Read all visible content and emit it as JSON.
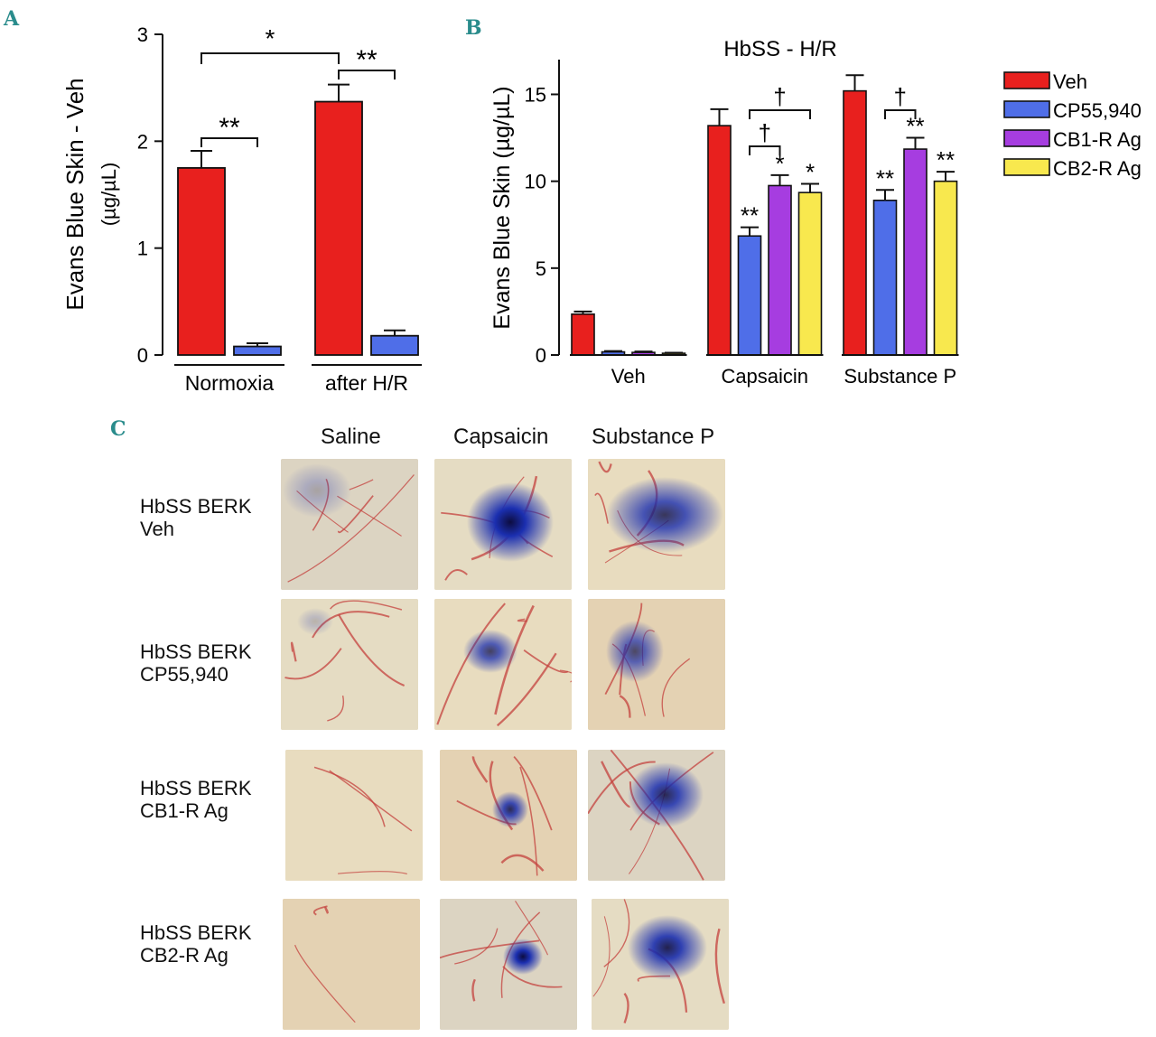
{
  "panels": {
    "a": "A",
    "b": "B",
    "c": "C"
  },
  "chart_data": [
    {
      "type": "bar",
      "panel": "A",
      "title": "",
      "ylabel_line1": "Evans Blue Skin - Veh",
      "ylabel_line2": "(µg/µL)",
      "xlabel": "",
      "ylim": [
        0,
        3
      ],
      "yticks": [
        0,
        1,
        2,
        3
      ],
      "categories": [
        "Normoxia",
        "after H/R"
      ],
      "series": [
        {
          "name": "Veh",
          "color": "#e8201e",
          "values": [
            1.75,
            2.37
          ],
          "errors": [
            0.16,
            0.16
          ]
        },
        {
          "name": "CP55,940",
          "color": "#4f6ee8",
          "values": [
            0.08,
            0.18
          ],
          "errors": [
            0.03,
            0.05
          ]
        }
      ],
      "annotations": [
        {
          "text": "**",
          "type": "bracket",
          "category": 0,
          "from_series": 0,
          "to_series": 1
        },
        {
          "text": "**",
          "type": "bracket",
          "category": 1,
          "from_series": 0,
          "to_series": 1
        },
        {
          "text": "*",
          "type": "bracket-across",
          "from_category": 0,
          "to_category": 1,
          "series": 0
        }
      ]
    },
    {
      "type": "bar",
      "panel": "B",
      "title": "HbSS - H/R",
      "ylabel": "Evans Blue Skin (µg/µL)",
      "xlabel": "",
      "ylim": [
        0,
        17
      ],
      "yticks": [
        0,
        5,
        10,
        15
      ],
      "categories": [
        "Veh",
        "Capsaicin",
        "Substance P"
      ],
      "legend_position": "right",
      "series": [
        {
          "name": "Veh",
          "color": "#e8201e",
          "values": [
            2.35,
            13.2,
            15.2
          ],
          "errors": [
            0.15,
            0.95,
            0.9
          ]
        },
        {
          "name": "CP55,940",
          "color": "#4f6ee8",
          "values": [
            0.18,
            6.85,
            8.9
          ],
          "errors": [
            0.05,
            0.5,
            0.6
          ]
        },
        {
          "name": "CB1-R Ag",
          "color": "#a63de0",
          "values": [
            0.15,
            9.75,
            11.85
          ],
          "errors": [
            0.05,
            0.6,
            0.65
          ]
        },
        {
          "name": "CB2-R Ag",
          "color": "#f8e84e",
          "values": [
            0.1,
            9.35,
            10.0
          ],
          "errors": [
            0.03,
            0.5,
            0.55
          ]
        }
      ],
      "significance": [
        {
          "category": 1,
          "series": 1,
          "text": "**"
        },
        {
          "category": 1,
          "series": 2,
          "text": "*"
        },
        {
          "category": 1,
          "series": 3,
          "text": "*"
        },
        {
          "category": 2,
          "series": 1,
          "text": "**"
        },
        {
          "category": 2,
          "series": 2,
          "text": "**"
        },
        {
          "category": 2,
          "series": 3,
          "text": "**"
        }
      ],
      "brackets": [
        {
          "category": 1,
          "from_series": 1,
          "to_series": 2,
          "text": "†"
        },
        {
          "category": 1,
          "from_series": 1,
          "to_series": 3,
          "text": "†"
        },
        {
          "category": 2,
          "from_series": 1,
          "to_series": 2,
          "text": "†"
        }
      ]
    }
  ],
  "panel_c": {
    "columns": [
      "Saline",
      "Capsaicin",
      "Substance P"
    ],
    "rows": [
      {
        "line1": "HbSS BERK",
        "line2": "Veh"
      },
      {
        "line1": "HbSS BERK",
        "line2": "CP55,940"
      },
      {
        "line1": "HbSS BERK",
        "line2": "CB1-R Ag"
      },
      {
        "line1": "HbSS BERK",
        "line2": "CB2-R Ag"
      }
    ],
    "colors": {
      "skin": "#e6d9bf",
      "vessel": "#c4423e",
      "dye": "#1b2fb0",
      "dye_core": "#0d0d40"
    }
  }
}
